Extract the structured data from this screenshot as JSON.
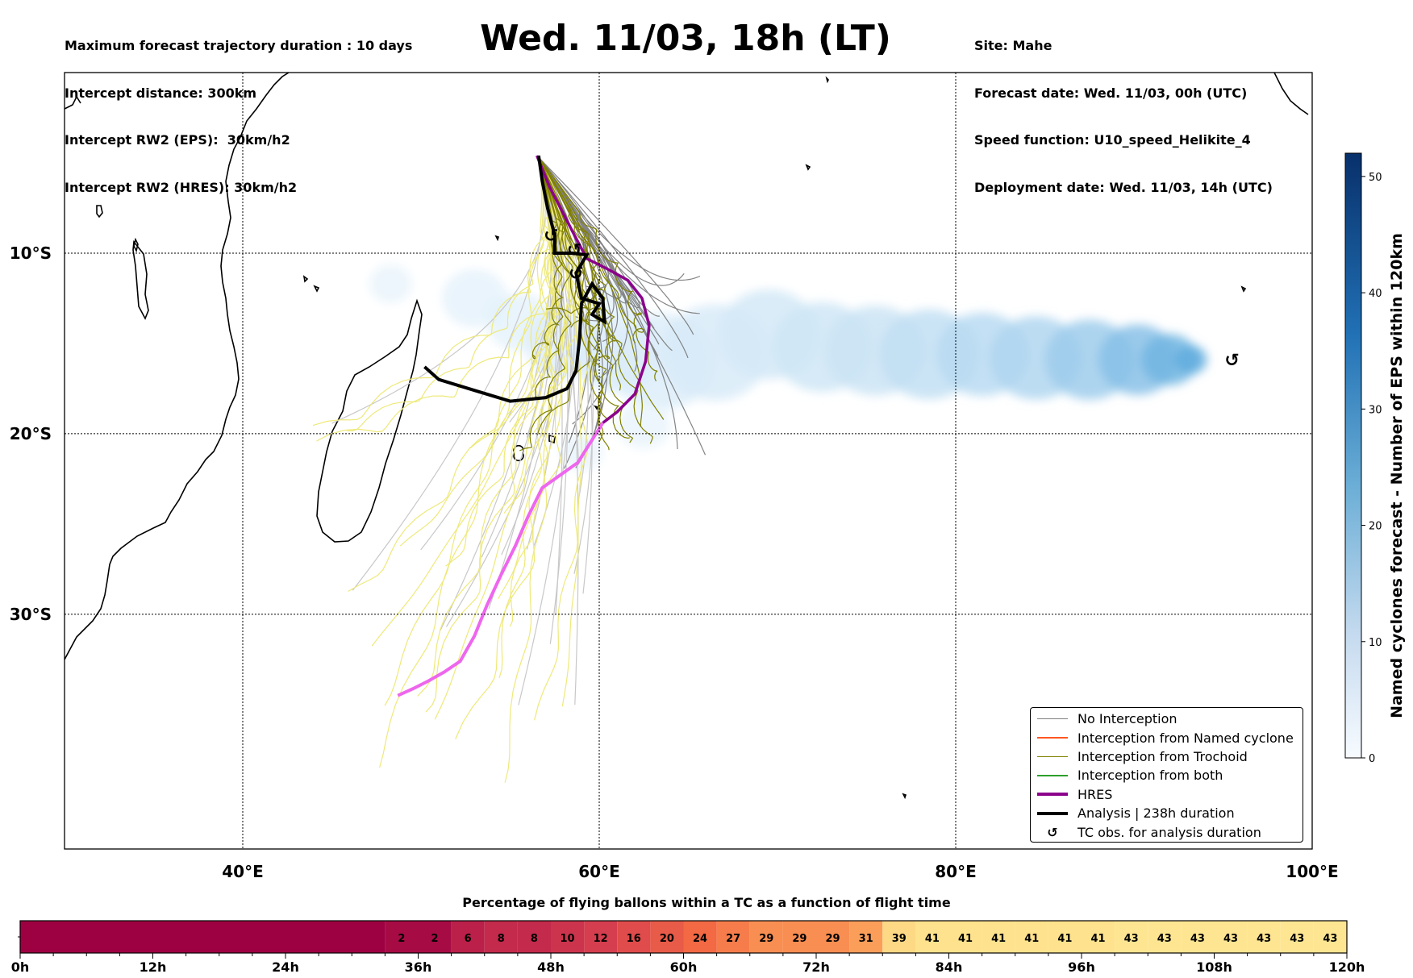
{
  "header_left": [
    "Maximum forecast trajectory duration : 10 days",
    "Intercept distance: 300km",
    "Intercept RW2 (EPS):  30km/h2",
    "Intercept RW2 (HRES): 30km/h2"
  ],
  "header_right": [
    "Site: Mahe",
    "Forecast date: Wed. 11/03, 00h (UTC)",
    "Speed function: U10_speed_Helikite_4",
    "Deployment date: Wed. 11/03, 14h (UTC)"
  ],
  "title": "Wed. 11/03, 18h (LT)",
  "map": {
    "lon_ticks": [
      "40°E",
      "60°E",
      "80°E",
      "100°E"
    ],
    "lat_ticks": [
      "10°S",
      "20°S",
      "30°S"
    ],
    "lon_values": [
      40,
      60,
      80,
      100
    ],
    "lat_values": [
      -10,
      -20,
      -30
    ],
    "extent": {
      "lon_min": 30,
      "lon_max": 100,
      "lat_min": -43,
      "lat_max": 0
    },
    "hres_track": [
      [
        56.5,
        -4.6
      ],
      [
        57.2,
        -6.3
      ],
      [
        58.5,
        -8.8
      ],
      [
        59.3,
        -10.3
      ],
      [
        60.5,
        -10.9
      ],
      [
        61.6,
        -11.5
      ],
      [
        62.4,
        -12.5
      ],
      [
        62.8,
        -14.0
      ],
      [
        62.6,
        -16.0
      ],
      [
        62.0,
        -17.8
      ],
      [
        61.0,
        -18.8
      ],
      [
        60.2,
        -19.4
      ],
      [
        59.5,
        -20.5
      ],
      [
        58.8,
        -21.6
      ],
      [
        57.8,
        -22.3
      ],
      [
        56.8,
        -23.0
      ],
      [
        56.0,
        -24.6
      ],
      [
        55.3,
        -26.2
      ],
      [
        54.5,
        -27.8
      ],
      [
        53.7,
        -29.5
      ],
      [
        53.0,
        -31.2
      ],
      [
        52.2,
        -32.6
      ],
      [
        51.3,
        -33.2
      ],
      [
        50.4,
        -33.7
      ],
      [
        49.6,
        -34.1
      ],
      [
        48.7,
        -34.5
      ]
    ],
    "analysis_track": [
      [
        56.6,
        -4.6
      ],
      [
        56.8,
        -6.0
      ],
      [
        57.1,
        -7.5
      ],
      [
        57.5,
        -9.0
      ],
      [
        57.5,
        -10.0
      ],
      [
        58.5,
        -10.0
      ],
      [
        59.3,
        -10.1
      ],
      [
        58.7,
        -11.1
      ],
      [
        59.0,
        -12.5
      ],
      [
        60.0,
        -12.8
      ],
      [
        59.6,
        -13.4
      ],
      [
        60.3,
        -13.8
      ],
      [
        60.2,
        -12.5
      ],
      [
        59.6,
        -11.7
      ],
      [
        59.0,
        -12.8
      ],
      [
        58.9,
        -14.7
      ],
      [
        58.7,
        -16.5
      ],
      [
        58.2,
        -17.5
      ],
      [
        57.0,
        -18.0
      ],
      [
        55.0,
        -18.2
      ],
      [
        53.0,
        -17.6
      ],
      [
        51.0,
        -17.0
      ],
      [
        50.2,
        -16.3
      ]
    ],
    "tc_obs": [
      [
        57.3,
        -9.0
      ],
      [
        58.6,
        -9.8
      ],
      [
        58.7,
        -11.1
      ],
      [
        95.5,
        -15.9
      ]
    ],
    "cyclone_density": [
      {
        "lon": 48.3,
        "lat": -11.7,
        "r": 1.2,
        "v": 3
      },
      {
        "lon": 53.0,
        "lat": -12.5,
        "r": 1.8,
        "v": 4
      },
      {
        "lon": 55.5,
        "lat": -13.8,
        "r": 1.8,
        "v": 4
      },
      {
        "lon": 58.0,
        "lat": -15.0,
        "r": 2.2,
        "v": 5
      },
      {
        "lon": 61.0,
        "lat": -15.5,
        "r": 2.5,
        "v": 6
      },
      {
        "lon": 63.5,
        "lat": -16.0,
        "r": 3.0,
        "v": 6
      },
      {
        "lon": 66.5,
        "lat": -15.5,
        "r": 3.0,
        "v": 7
      },
      {
        "lon": 69.5,
        "lat": -14.5,
        "r": 2.8,
        "v": 8
      },
      {
        "lon": 72.5,
        "lat": -15.2,
        "r": 2.8,
        "v": 9
      },
      {
        "lon": 75.5,
        "lat": -15.4,
        "r": 2.8,
        "v": 10
      },
      {
        "lon": 78.5,
        "lat": -15.6,
        "r": 2.8,
        "v": 12
      },
      {
        "lon": 81.5,
        "lat": -15.6,
        "r": 2.6,
        "v": 14
      },
      {
        "lon": 84.5,
        "lat": -15.8,
        "r": 2.6,
        "v": 16
      },
      {
        "lon": 87.5,
        "lat": -15.9,
        "r": 2.5,
        "v": 20
      },
      {
        "lon": 90.2,
        "lat": -15.9,
        "r": 2.2,
        "v": 25
      },
      {
        "lon": 92.0,
        "lat": -15.9,
        "r": 1.6,
        "v": 30
      },
      {
        "lon": 93.2,
        "lat": -15.9,
        "r": 0.9,
        "v": 34
      },
      {
        "lon": 59.0,
        "lat": -21.0,
        "r": 1.2,
        "v": 3
      },
      {
        "lon": 62.5,
        "lat": -19.5,
        "r": 1.5,
        "v": 3
      },
      {
        "lon": 61.0,
        "lat": -12.8,
        "r": 1.5,
        "v": 4
      }
    ]
  },
  "colorbar": {
    "label": "Named cyclones forecast - Number of EPS within 120km",
    "min": 0,
    "max": 52,
    "ticks": [
      "0",
      "10",
      "20",
      "30",
      "40",
      "50"
    ],
    "tick_values": [
      0,
      10,
      20,
      30,
      40,
      50
    ]
  },
  "legend": {
    "items": [
      {
        "label": "No Interception",
        "color": "#808080",
        "style": "line-thin"
      },
      {
        "label": "Interception from Named cyclone",
        "color": "#ff5722",
        "style": "line-thin"
      },
      {
        "label": "Interception from Trochoid",
        "color": "#808000",
        "style": "line-thin"
      },
      {
        "label": "Interception from both",
        "color": "#2ca02c",
        "style": "line-thin"
      },
      {
        "label": "HRES",
        "color": "#8b008b",
        "style": "line-thick"
      },
      {
        "label": "Analysis | 238h duration",
        "color": "#000000",
        "style": "line-thick"
      },
      {
        "label": "TC obs. for analysis duration",
        "color": "#000000",
        "style": "symbol",
        "symbol": "↺"
      }
    ]
  },
  "percentage_bar": {
    "title": "Percentage of flying ballons within a TC as a function of flight time",
    "time_ticks": [
      "0h",
      "12h",
      "24h",
      "36h",
      "48h",
      "60h",
      "72h",
      "84h",
      "96h",
      "108h",
      "120h"
    ],
    "hours": [
      0,
      12,
      24,
      36,
      48,
      60,
      72,
      84,
      96,
      108,
      120
    ],
    "cells": [
      {
        "hour": 33,
        "value": "2"
      },
      {
        "hour": 36,
        "value": "2"
      },
      {
        "hour": 39,
        "value": "6"
      },
      {
        "hour": 42,
        "value": "8"
      },
      {
        "hour": 45,
        "value": "8"
      },
      {
        "hour": 48,
        "value": "10"
      },
      {
        "hour": 51,
        "value": "12"
      },
      {
        "hour": 54,
        "value": "16"
      },
      {
        "hour": 57,
        "value": "20"
      },
      {
        "hour": 60,
        "value": "24"
      },
      {
        "hour": 63,
        "value": "27"
      },
      {
        "hour": 66,
        "value": "29"
      },
      {
        "hour": 69,
        "value": "29"
      },
      {
        "hour": 72,
        "value": "29"
      },
      {
        "hour": 75,
        "value": "31"
      },
      {
        "hour": 78,
        "value": "39"
      },
      {
        "hour": 81,
        "value": "41"
      },
      {
        "hour": 84,
        "value": "41"
      },
      {
        "hour": 87,
        "value": "41"
      },
      {
        "hour": 90,
        "value": "41"
      },
      {
        "hour": 93,
        "value": "41"
      },
      {
        "hour": 96,
        "value": "41"
      },
      {
        "hour": 99,
        "value": "43"
      },
      {
        "hour": 102,
        "value": "43"
      },
      {
        "hour": 105,
        "value": "43"
      },
      {
        "hour": 108,
        "value": "43"
      },
      {
        "hour": 111,
        "value": "43"
      },
      {
        "hour": 114,
        "value": "43"
      },
      {
        "hour": 117,
        "value": "43"
      }
    ]
  }
}
